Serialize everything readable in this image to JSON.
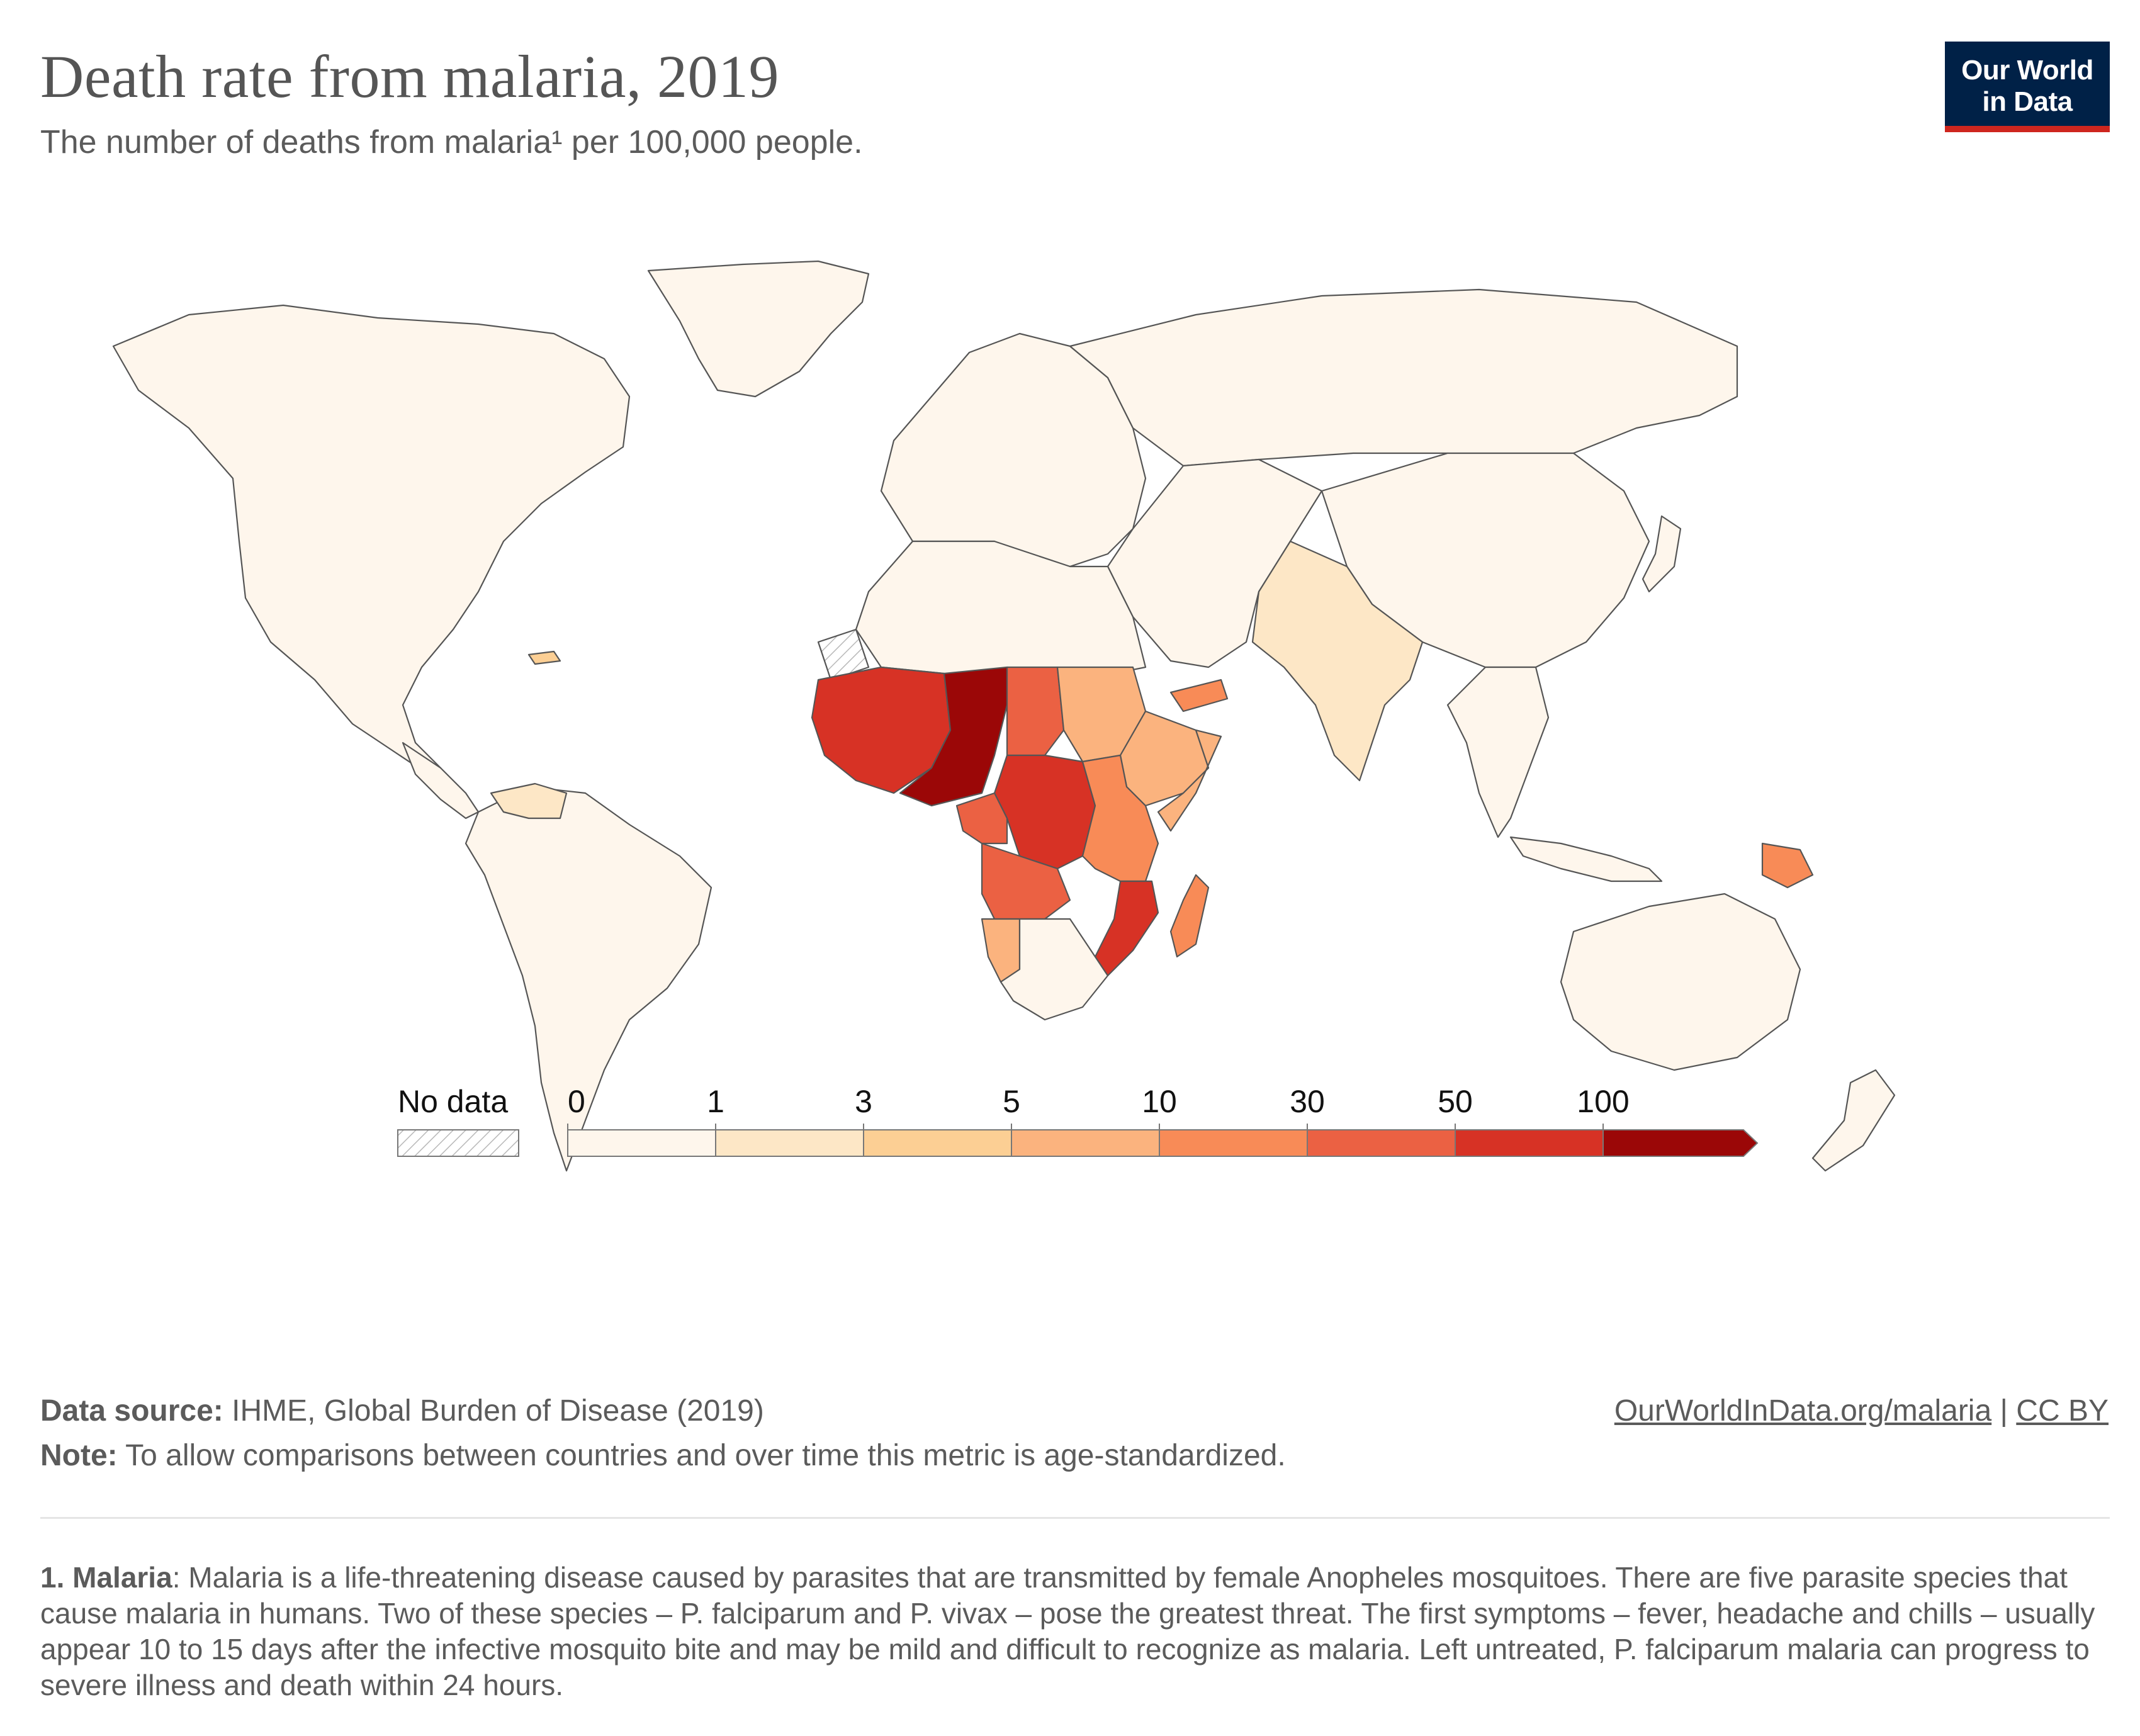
{
  "header": {
    "title": "Death rate from malaria, 2019",
    "subtitle": "The number of deaths from malaria¹ per 100,000 people."
  },
  "logo": {
    "line1": "Our World",
    "line2": "in Data"
  },
  "legend": {
    "no_data_label": "No data",
    "bins": [
      {
        "label": "0",
        "color": "#fef6ec"
      },
      {
        "label": "1",
        "color": "#fde7c6"
      },
      {
        "label": "3",
        "color": "#fccf94"
      },
      {
        "label": "5",
        "color": "#fbb37e"
      },
      {
        "label": "10",
        "color": "#f88b57"
      },
      {
        "label": "30",
        "color": "#eb6143"
      },
      {
        "label": "50",
        "color": "#d73225"
      },
      {
        "label": "100",
        "color": "#9b0707"
      }
    ]
  },
  "colors": {
    "no_data": "#ffffff",
    "border": "#555555",
    "land_low": "#fef6ec"
  },
  "footer": {
    "source_label": "Data source:",
    "source_text": " IHME, Global Burden of Disease (2019)",
    "note_label": "Note:",
    "note_text": " To allow comparisons between countries and over time this metric is age-standardized.",
    "url": "OurWorldInData.org/malaria",
    "separator": " | ",
    "license": "CC BY"
  },
  "footnote": {
    "label": "1. Malaria",
    "text": ": Malaria is a life-threatening disease caused by parasites that are transmitted by female Anopheles mosquitoes. There are five parasite species that cause malaria in humans. Two of these species – P. falciparum and P. vivax – pose the greatest threat. The first symptoms – fever, headache and chills – usually appear 10 to 15 days after the infective mosquito bite and may be mild and difficult to recognize as malaria. Left untreated, P. falciparum malaria can progress to severe illness and death within 24 hours."
  }
}
